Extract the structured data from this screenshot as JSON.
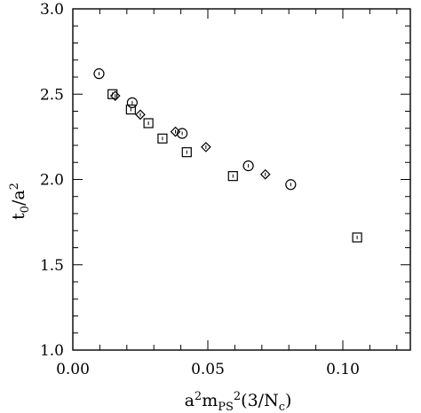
{
  "chart_data": {
    "type": "scatter",
    "title": "",
    "xlabel": "a²m_PS²(3/N_c)",
    "ylabel": "t₀/a²",
    "xlim": [
      0.0,
      0.125
    ],
    "ylim": [
      1.0,
      3.0
    ],
    "xticks": [
      "0.00",
      "0.05",
      "0.10"
    ],
    "yticks": [
      "1.0",
      "1.5",
      "2.0",
      "2.5",
      "3.0"
    ],
    "grid": false,
    "legend": "none",
    "series": [
      {
        "marker": "circle",
        "points": [
          {
            "x": 0.0097,
            "y": 2.62
          },
          {
            "x": 0.022,
            "y": 2.45
          },
          {
            "x": 0.0405,
            "y": 2.27
          },
          {
            "x": 0.065,
            "y": 2.08
          },
          {
            "x": 0.0807,
            "y": 1.97
          }
        ]
      },
      {
        "marker": "square",
        "points": [
          {
            "x": 0.0147,
            "y": 2.5
          },
          {
            "x": 0.0215,
            "y": 2.41
          },
          {
            "x": 0.028,
            "y": 2.33
          },
          {
            "x": 0.0332,
            "y": 2.24
          },
          {
            "x": 0.0422,
            "y": 2.16
          },
          {
            "x": 0.0593,
            "y": 2.02
          },
          {
            "x": 0.1053,
            "y": 1.66
          }
        ]
      },
      {
        "marker": "diamond",
        "points": [
          {
            "x": 0.0157,
            "y": 2.49
          },
          {
            "x": 0.025,
            "y": 2.38
          },
          {
            "x": 0.038,
            "y": 2.28
          },
          {
            "x": 0.0493,
            "y": 2.19
          },
          {
            "x": 0.0713,
            "y": 2.03
          }
        ]
      }
    ]
  }
}
